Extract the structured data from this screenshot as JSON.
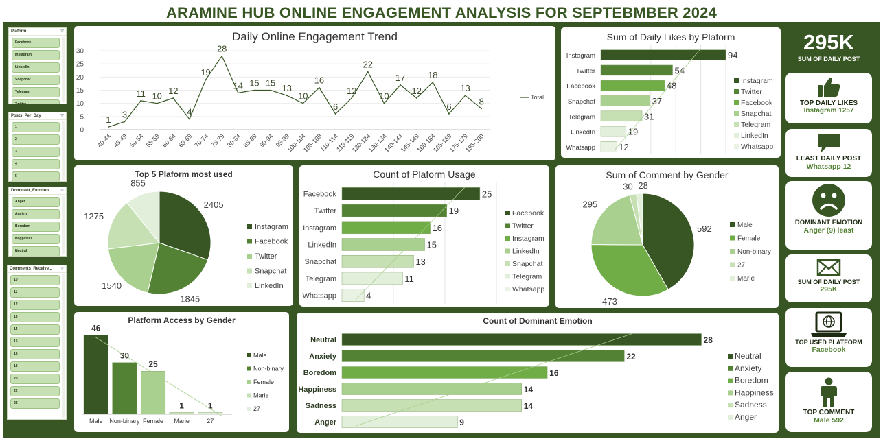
{
  "title": "ARAMINE HUB  ONLINE ENGAGEMENT ANALYSIS FOR SEPTEBMBER 2024",
  "colors": {
    "dark": "#375623",
    "mid": "#548235",
    "green": "#70ad47",
    "light": "#a9d08e",
    "pale": "#c6e0b4",
    "paler": "#e2efda"
  },
  "slicers": [
    {
      "title": "Plaform",
      "items": [
        "Facebook",
        "Instagram",
        "LinkedIn",
        "Snapchat",
        "Telegram",
        "Twitter"
      ]
    },
    {
      "title": "Posts_Per_Day",
      "items": [
        "1",
        "2",
        "3",
        "4",
        "5"
      ]
    },
    {
      "title": "Dominant_Emotion",
      "items": [
        "Anger",
        "Anxiety",
        "Boredom",
        "Happiness",
        "Neutral"
      ]
    },
    {
      "title": "Comments_Receive...",
      "items": [
        "10",
        "11",
        "12",
        "13",
        "14",
        "15",
        "16",
        "18",
        "20",
        "22",
        "23"
      ]
    }
  ],
  "kpis": {
    "total_posts": {
      "value": "295K",
      "label": "SUM OF DAILY POST"
    },
    "top_likes": {
      "label": "TOP DAILY LIKES",
      "value": "Instagram 1257",
      "icon": "thumbs-up-icon"
    },
    "least_post": {
      "label": "LEAST DAILY POST",
      "value": "Whatsapp 12",
      "icon": "speech-bubble-icon"
    },
    "emotion": {
      "label": "DOMINANT EMOTION",
      "value": "Anger (9) least",
      "icon": "sad-face-icon"
    },
    "sum_post": {
      "label": "SUM OF DAILY POST",
      "value": "295K",
      "icon": "envelope-icon"
    },
    "top_platform": {
      "label": "TOP USED PLATFORM",
      "value": "Facebook",
      "icon": "laptop-globe-icon"
    },
    "top_comment": {
      "label": "TOP COMMENT",
      "value": "Male 592",
      "icon": "person-icon"
    }
  },
  "chart_data": [
    {
      "id": "trend",
      "type": "line",
      "title": "Daily Online Engagement Trend",
      "legend": [
        "Total"
      ],
      "legend_position": "right",
      "categories": [
        "40-44",
        "45-49",
        "50-54",
        "55-59",
        "60-64",
        "65-69",
        "70-74",
        "75-79",
        "80-84",
        "85-89",
        "90-94",
        "95-99",
        "100-104",
        "105-109",
        "110-114",
        "115-119",
        "120-124",
        "130-134",
        "140-144",
        "145-149",
        "160-164",
        "165-169",
        "175-179",
        "195-200"
      ],
      "values": [
        1,
        3,
        11,
        10,
        12,
        4,
        19,
        28,
        14,
        15,
        15,
        13,
        10,
        16,
        6,
        12,
        22,
        10,
        17,
        12,
        18,
        6,
        13,
        8
      ],
      "yticks": [
        "0",
        "5",
        "10",
        "15",
        "20",
        "25",
        "30"
      ],
      "ylim": [
        0,
        30
      ]
    },
    {
      "id": "likes",
      "type": "bar",
      "orientation": "horizontal",
      "title": "Sum of Daily Likes by Plaform",
      "categories": [
        "Instagram",
        "Twitter",
        "Facebook",
        "Snapchat",
        "Telegram",
        "LinkedIn",
        "Whatsapp"
      ],
      "values": [
        94,
        54,
        48,
        37,
        31,
        19,
        12
      ],
      "legend_position": "right"
    },
    {
      "id": "pie5",
      "type": "pie",
      "title": "Top 5 Plaform most used",
      "categories": [
        "Instagram",
        "Facebook",
        "Twitter",
        "Snapchat",
        "LinkedIn"
      ],
      "values": [
        2405,
        1845,
        1540,
        1275,
        855
      ],
      "legend_position": "right"
    },
    {
      "id": "usage",
      "type": "bar",
      "orientation": "horizontal",
      "title": "Count of Plaform Usage",
      "categories": [
        "Facebook",
        "Twitter",
        "Instagram",
        "LinkedIn",
        "Snapchat",
        "Telegram",
        "Whatsapp"
      ],
      "values": [
        25,
        19,
        16,
        15,
        13,
        11,
        4
      ],
      "legend_position": "right"
    },
    {
      "id": "gender",
      "type": "pie",
      "title": "Sum of Comment by Gender",
      "categories": [
        "Male",
        "Female",
        "Non-binary",
        "27",
        "Marie"
      ],
      "values": [
        592,
        473,
        295,
        30,
        28
      ],
      "legend_position": "right"
    },
    {
      "id": "access",
      "type": "bar",
      "orientation": "vertical",
      "title": "Platform Access by Gender",
      "categories": [
        "Male",
        "Non-binary",
        "Female",
        "Marie",
        "27"
      ],
      "values": [
        46,
        30,
        25,
        1,
        1
      ],
      "legend": [
        "Male",
        "Non-binary",
        "Female",
        "Marie",
        "27"
      ],
      "legend_position": "right"
    },
    {
      "id": "emotion",
      "type": "bar",
      "orientation": "horizontal",
      "title": "Count of Dominant Emotion",
      "categories": [
        "Neutral",
        "Anxiety",
        "Boredom",
        "Happiness",
        "Sadness",
        "Anger"
      ],
      "values": [
        28,
        22,
        16,
        14,
        14,
        9
      ],
      "legend_position": "right"
    }
  ]
}
